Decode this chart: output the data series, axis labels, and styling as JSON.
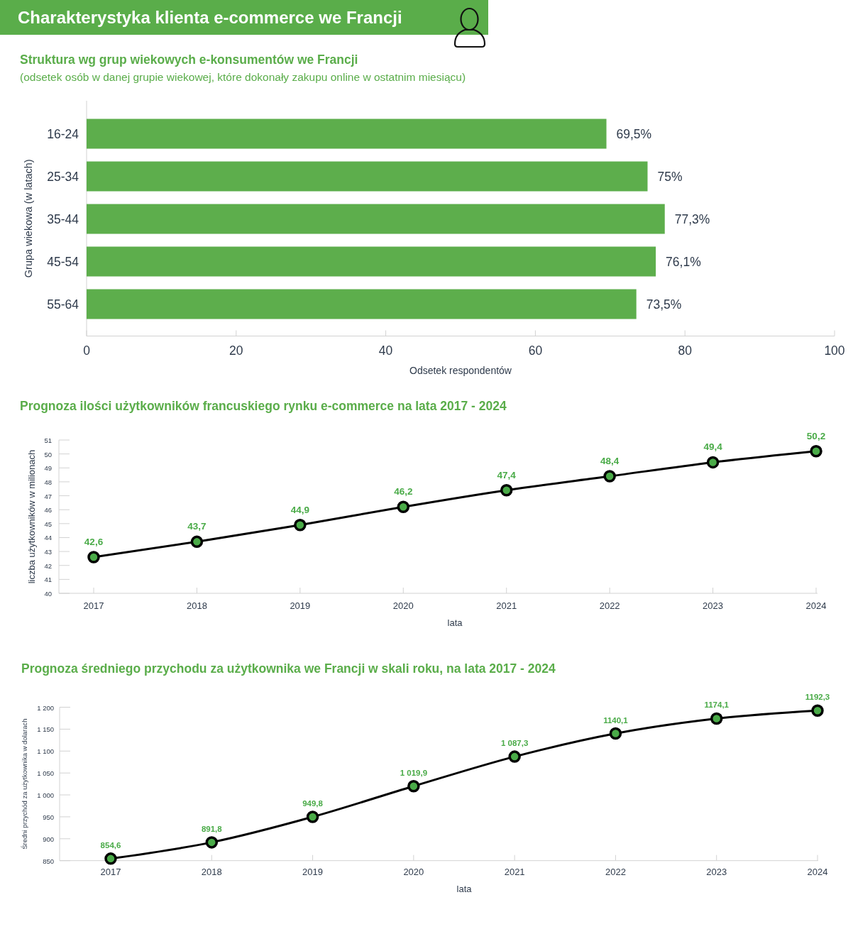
{
  "chart_data": [
    {
      "type": "other",
      "title": "Charakterystyka klienta e-commerce we Francji"
    },
    {
      "type": "bar",
      "title": "Struktura wg grup wiekowych e-konsumentów we Francji",
      "subtitle": "(odsetek osób w danej grupie wiekowej, które dokonały zakupu online w ostatnim miesiącu)",
      "orientation": "horizontal",
      "categories": [
        "16-24",
        "25-34",
        "35-44",
        "45-54",
        "55-64"
      ],
      "values": [
        69.5,
        75,
        77.3,
        76.1,
        73.5
      ],
      "value_labels": [
        "69,5%",
        "75%",
        "77,3%",
        "76,1%",
        "73,5%"
      ],
      "color": "#5dae4c",
      "xlim": [
        0,
        100
      ],
      "xticks": [
        0,
        20,
        40,
        60,
        80,
        100
      ],
      "xlabel": "Odsetek respondentów",
      "ylabel": "Grupa wiekowa (w latach)"
    },
    {
      "type": "line",
      "title": "Prognoza ilości użytkowników francuskiego rynku e-commerce na lata 2017 - 2024",
      "categories": [
        "2017",
        "2018",
        "2019",
        "2020",
        "2021",
        "2022",
        "2023",
        "2024"
      ],
      "values": [
        42.6,
        43.7,
        44.9,
        46.2,
        47.4,
        48.4,
        49.4,
        50.2
      ],
      "value_labels": [
        "42,6",
        "43,7",
        "44,9",
        "46,2",
        "47,4",
        "48,4",
        "49,4",
        "50,2"
      ],
      "color": "#000000",
      "colors": [
        "#4aab48",
        "#4aab48",
        "#4aab48",
        "#4aab48",
        "#4aab48",
        "#4aab48",
        "#4aab48",
        "#4aab48"
      ],
      "marker": "circle",
      "ylim": [
        40,
        51
      ],
      "yticks": [
        40,
        41,
        42,
        43,
        44,
        45,
        46,
        47,
        48,
        49,
        50,
        51
      ],
      "xlabel": "lata",
      "ylabel": "liczba użytkowników w milionach"
    },
    {
      "type": "line",
      "title": "Prognoza średniego przychodu za użytkownika we Francji w skali roku, na lata 2017 - 2024",
      "categories": [
        "2017",
        "2018",
        "2019",
        "2020",
        "2021",
        "2022",
        "2023",
        "2024"
      ],
      "values": [
        854.6,
        891.8,
        949.8,
        1019.9,
        1087.3,
        1140.1,
        1174.1,
        1192.3
      ],
      "value_labels": [
        "854,6",
        "891,8",
        "949,8",
        "1 019,9",
        "1 087,3",
        "1140,1",
        "1174,1",
        "1192,3"
      ],
      "color": "#000000",
      "colors": [
        "#4aab48",
        "#4aab48",
        "#4aab48",
        "#4aab48",
        "#4aab48",
        "#4aab48",
        "#4aab48",
        "#4aab48"
      ],
      "marker": "circle",
      "ylim": [
        850,
        1200
      ],
      "yticks": [
        850,
        900,
        950,
        {
          "value": 1000,
          "label": "1 000"
        },
        {
          "value": 1050,
          "label": "1 050"
        },
        {
          "value": 1100,
          "label": "1 100"
        },
        {
          "value": 1150,
          "label": "1 150"
        },
        {
          "value": 1200,
          "label": "1 200"
        }
      ],
      "xlabel": "lata",
      "ylabel": "Średni przychód za użytkownika w dolarach"
    }
  ]
}
